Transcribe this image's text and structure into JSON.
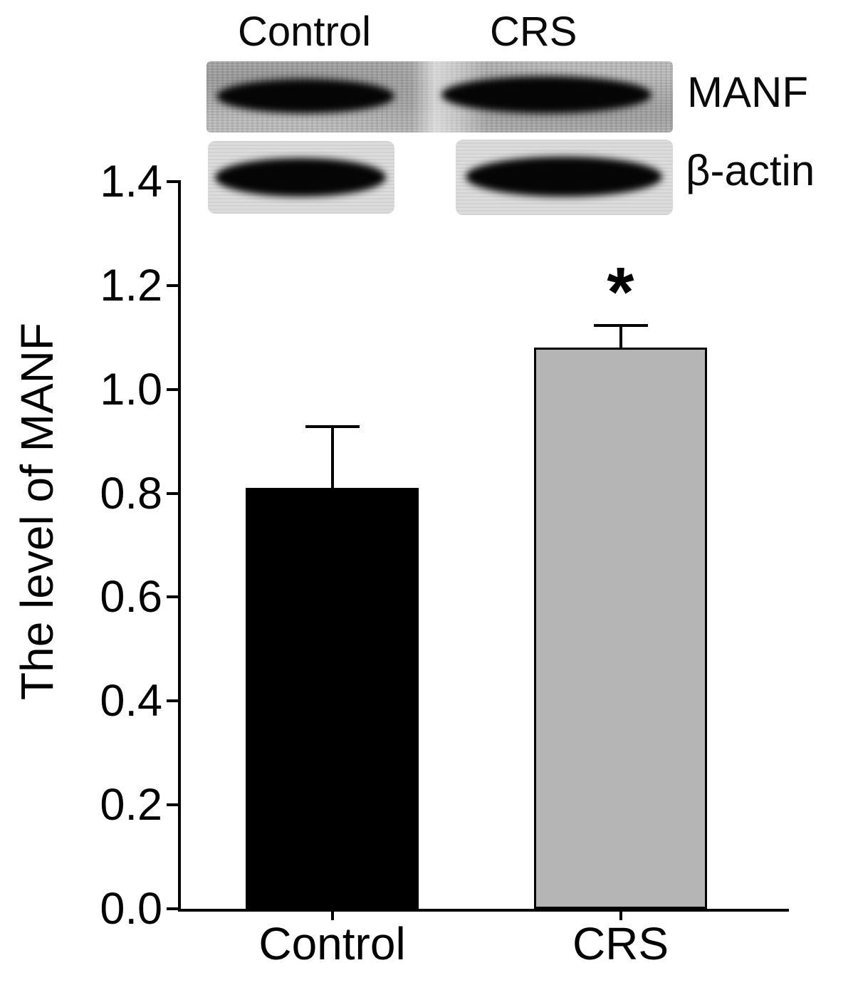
{
  "blot": {
    "lane_labels": [
      "Control",
      "CRS"
    ],
    "band_labels": [
      "MANF",
      "β-actin"
    ]
  },
  "chart_data": {
    "type": "bar",
    "title": "",
    "categories": [
      "Control",
      "CRS"
    ],
    "values": [
      0.81,
      1.08
    ],
    "errors": [
      0.12,
      0.045
    ],
    "bar_colors": [
      "#000000",
      "#b5b5b5"
    ],
    "annotations": [
      {
        "category": "CRS",
        "text": "*"
      }
    ],
    "xlabel": "",
    "ylabel": "The level of MANF",
    "ylim": [
      0,
      1.4
    ],
    "yticks": [
      "0.0",
      "0.2",
      "0.4",
      "0.6",
      "0.8",
      "1.0",
      "1.2",
      "1.4"
    ],
    "grid": false,
    "legend": "none"
  }
}
